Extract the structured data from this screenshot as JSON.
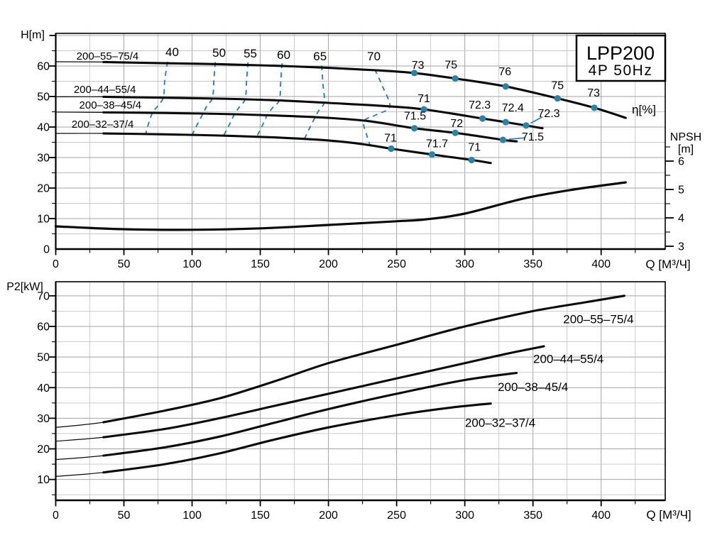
{
  "colors": {
    "curve": "#0a0a0a",
    "accent_teal": "#2b84a6",
    "grid_major": "#a3a3a3",
    "grid_minor": "#c6c6c6",
    "background": "#ffffff"
  },
  "chart_data": [
    {
      "type": "line",
      "title": "LPP200",
      "subtitle": "4P  50Hz",
      "xlabel": "Q [М³/Ч]",
      "ylabel": "H[m]",
      "npsh_label_line1": "NPSH",
      "npsh_label_line2": "[m]",
      "eta_label": "η[%]",
      "xlim": [
        0,
        447
      ],
      "ylim": [
        0,
        70.7
      ],
      "npsh_lim": [
        3,
        6.6
      ],
      "x_tick_labels": [
        0,
        50,
        100,
        150,
        200,
        250,
        300,
        350,
        400
      ],
      "x_minor_step": 25,
      "y_tick_labels": [
        0,
        10,
        20,
        30,
        40,
        50,
        60
      ],
      "y_minor_step": 5,
      "npsh_tick_labels": [
        3,
        4,
        5,
        6
      ],
      "npsh_minor_step": 0.5,
      "grid": true,
      "series": [
        {
          "name": "200–55–75/4",
          "label_pos": [
            38,
            63.3
          ],
          "thin_until": 35,
          "points": [
            [
              0,
              61.4
            ],
            [
              35,
              61.3
            ],
            [
              80,
              60.9
            ],
            [
              120,
              60.6
            ],
            [
              160,
              60.1
            ],
            [
              200,
              59.4
            ],
            [
              235,
              58.6
            ],
            [
              263,
              57.7
            ],
            [
              293,
              55.9
            ],
            [
              330,
              53.3
            ],
            [
              368,
              49.4
            ],
            [
              395,
              46.3
            ],
            [
              418,
              43.0
            ]
          ]
        },
        {
          "name": "200–44–55/4",
          "label_pos": [
            36,
            52.3
          ],
          "thin_until": 35,
          "points": [
            [
              0,
              49.9
            ],
            [
              35,
              49.9
            ],
            [
              80,
              49.6
            ],
            [
              120,
              49.3
            ],
            [
              160,
              48.8
            ],
            [
              200,
              47.9
            ],
            [
              240,
              46.9
            ],
            [
              270,
              45.8
            ],
            [
              313,
              42.8
            ],
            [
              330,
              41.6
            ],
            [
              345,
              40.5
            ],
            [
              357,
              39.6
            ]
          ]
        },
        {
          "name": "200–38–45/4",
          "label_pos": [
            40,
            47.2
          ],
          "thin_until": 35,
          "points": [
            [
              0,
              44.9
            ],
            [
              35,
              44.8
            ],
            [
              80,
              44.6
            ],
            [
              120,
              44.3
            ],
            [
              160,
              43.8
            ],
            [
              200,
              43.0
            ],
            [
              230,
              41.9
            ],
            [
              263,
              39.6
            ],
            [
              293,
              38.1
            ],
            [
              328,
              35.8
            ],
            [
              338,
              35.3
            ]
          ]
        },
        {
          "name": "200–32–37/4",
          "label_pos": [
            34.4,
            40.9
          ],
          "thin_until": 35,
          "points": [
            [
              0,
              37.9
            ],
            [
              35,
              37.9
            ],
            [
              80,
              37.6
            ],
            [
              120,
              37.2
            ],
            [
              160,
              36.6
            ],
            [
              200,
              35.6
            ],
            [
              225,
              34.4
            ],
            [
              246,
              32.9
            ],
            [
              276,
              31.0
            ],
            [
              305,
              29.2
            ],
            [
              319,
              28.2
            ]
          ]
        }
      ],
      "efficiency_contours": [
        {
          "label": "40",
          "label_pos": [
            85.4,
            64.7
          ],
          "points": [
            [
              82,
              61.4
            ],
            [
              80,
              55.5
            ],
            [
              79,
              49.8
            ],
            [
              75,
              47.0
            ],
            [
              71,
              44.7
            ],
            [
              68,
              41.0
            ],
            [
              66,
              37.8
            ]
          ]
        },
        {
          "label": "50",
          "label_pos": [
            119.8,
            64.4
          ],
          "points": [
            [
              117,
              61.3
            ],
            [
              116,
              55.5
            ],
            [
              115,
              49.6
            ],
            [
              111,
              47.0
            ],
            [
              108,
              44.4
            ],
            [
              104,
              41.0
            ],
            [
              100,
              37.4
            ]
          ]
        },
        {
          "label": "55",
          "label_pos": [
            142.7,
            64.2
          ],
          "points": [
            [
              141,
              61.2
            ],
            [
              140,
              55.5
            ],
            [
              139,
              49.3
            ],
            [
              135,
              46.8
            ],
            [
              131,
              44.1
            ],
            [
              127,
              40.5
            ],
            [
              123,
              37.1
            ]
          ]
        },
        {
          "label": "60",
          "label_pos": [
            167.2,
            63.7
          ],
          "points": [
            [
              166,
              60.9
            ],
            [
              165,
              55.0
            ],
            [
              164,
              48.9
            ],
            [
              159,
              46.3
            ],
            [
              155,
              43.8
            ],
            [
              151,
              40.0
            ],
            [
              147,
              36.5
            ]
          ]
        },
        {
          "label": "65",
          "label_pos": [
            193.8,
            63.3
          ],
          "points": [
            [
              195,
              60.2
            ],
            [
              196,
              54.0
            ],
            [
              197,
              48.2
            ],
            [
              193,
              45.5
            ],
            [
              190,
              43.0
            ],
            [
              186,
              39.5
            ],
            [
              182,
              35.7
            ]
          ]
        },
        {
          "label": "70",
          "label_pos": [
            233.3,
            63.3
          ],
          "points": [
            [
              234,
              58.9
            ],
            [
              240,
              53.0
            ],
            [
              245,
              46.7
            ],
            [
              235,
              44.0
            ],
            [
              226,
              41.9
            ],
            [
              228,
              37.5
            ],
            [
              231,
              33.3
            ]
          ]
        }
      ],
      "efficiency_points": [
        {
          "series": 0,
          "q": 263,
          "h": 57.7,
          "label": "73",
          "offset": [
            5,
            -11
          ]
        },
        {
          "series": 0,
          "q": 293,
          "h": 55.9,
          "label": "75",
          "offset": [
            -6,
            -19
          ]
        },
        {
          "series": 0,
          "q": 330,
          "h": 53.3,
          "label": "76",
          "offset": [
            -1,
            -21
          ]
        },
        {
          "series": 0,
          "q": 368,
          "h": 49.4,
          "label": "75",
          "offset": [
            0,
            -18
          ]
        },
        {
          "series": 0,
          "q": 395,
          "h": 46.3,
          "label": "73",
          "offset": [
            -1,
            -21
          ]
        },
        {
          "series": 1,
          "q": 270,
          "h": 45.8,
          "label": "71",
          "offset": [
            0,
            -15
          ]
        },
        {
          "series": 1,
          "q": 313,
          "h": 42.8,
          "label": "72.3",
          "offset": [
            -4,
            -19
          ]
        },
        {
          "series": 1,
          "q": 330,
          "h": 41.6,
          "label": "72.4",
          "offset": [
            10,
            -20
          ]
        },
        {
          "series": 1,
          "q": 345,
          "h": 40.5,
          "label": "72.3",
          "offset": [
            32,
            -17
          ],
          "callout": true
        },
        {
          "series": 2,
          "q": 263,
          "h": 39.6,
          "label": "71.5",
          "offset": [
            1,
            -17
          ]
        },
        {
          "series": 2,
          "q": 293,
          "h": 38.1,
          "label": "72",
          "offset": [
            2,
            -13
          ]
        },
        {
          "series": 2,
          "q": 328,
          "h": 35.8,
          "label": "71.5",
          "offset": [
            42,
            -4
          ],
          "callout": true
        },
        {
          "series": 3,
          "q": 246,
          "h": 32.9,
          "label": "71",
          "offset": [
            -1,
            -15
          ]
        },
        {
          "series": 3,
          "q": 276,
          "h": 31.0,
          "label": "71.7",
          "offset": [
            7,
            -15
          ]
        },
        {
          "series": 3,
          "q": 305,
          "h": 29.2,
          "label": "71",
          "offset": [
            4,
            -18
          ]
        }
      ],
      "npsh_curve": [
        [
          0,
          3.7
        ],
        [
          50,
          3.6
        ],
        [
          100,
          3.58
        ],
        [
          150,
          3.63
        ],
        [
          200,
          3.75
        ],
        [
          250,
          3.88
        ],
        [
          272,
          3.95
        ],
        [
          300,
          4.15
        ],
        [
          343,
          4.68
        ],
        [
          380,
          5.0
        ],
        [
          418,
          5.25
        ]
      ]
    },
    {
      "type": "line",
      "xlabel": "Q [М³/Ч]",
      "ylabel": "P2[kW]",
      "xlim": [
        0,
        447
      ],
      "ylim": [
        3.2,
        74.6
      ],
      "x_tick_labels": [
        0,
        50,
        100,
        150,
        200,
        250,
        300,
        350,
        400
      ],
      "x_minor_step": 25,
      "y_tick_labels": [
        10,
        20,
        30,
        40,
        50,
        60,
        70
      ],
      "y_minor_step": 5,
      "grid": true,
      "series": [
        {
          "name": "200–55–75/4",
          "label_pos": [
            398,
            62.2
          ],
          "thin_until": 35,
          "points": [
            [
              0,
              27
            ],
            [
              35,
              28.7
            ],
            [
              80,
              32.5
            ],
            [
              120,
              36.5
            ],
            [
              160,
              42
            ],
            [
              200,
              48
            ],
            [
              250,
              54
            ],
            [
              300,
              60
            ],
            [
              350,
              65
            ],
            [
              390,
              68
            ],
            [
              417,
              70
            ]
          ]
        },
        {
          "name": "200–44–55/4",
          "label_pos": [
            376,
            49.2
          ],
          "thin_until": 35,
          "points": [
            [
              0,
              22.5
            ],
            [
              35,
              23.8
            ],
            [
              80,
              26.5
            ],
            [
              120,
              30
            ],
            [
              160,
              34
            ],
            [
              200,
              38
            ],
            [
              250,
              43
            ],
            [
              300,
              48
            ],
            [
              330,
              51
            ],
            [
              358,
              53.5
            ]
          ]
        },
        {
          "name": "200–38–45/4",
          "label_pos": [
            350,
            40.1
          ],
          "thin_until": 35,
          "points": [
            [
              0,
              16.5
            ],
            [
              35,
              17.8
            ],
            [
              80,
              20.5
            ],
            [
              120,
              24
            ],
            [
              160,
              28.5
            ],
            [
              200,
              33
            ],
            [
              250,
              38
            ],
            [
              300,
              42.5
            ],
            [
              338,
              44.8
            ]
          ]
        },
        {
          "name": "200–32–37/4",
          "label_pos": [
            326,
            28.3
          ],
          "thin_until": 35,
          "points": [
            [
              0,
              11
            ],
            [
              35,
              12.3
            ],
            [
              80,
              15
            ],
            [
              120,
              18.5
            ],
            [
              160,
              23
            ],
            [
              200,
              27
            ],
            [
              250,
              31
            ],
            [
              290,
              33.5
            ],
            [
              319,
              34.8
            ]
          ]
        }
      ]
    }
  ]
}
